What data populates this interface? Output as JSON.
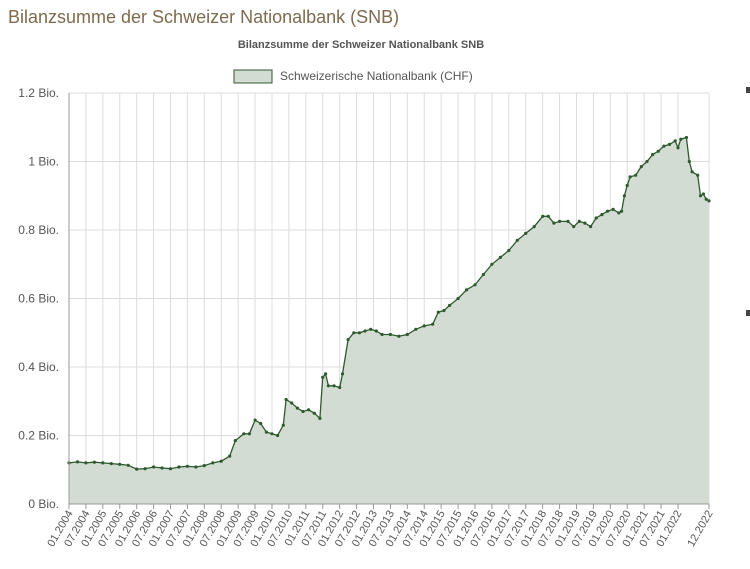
{
  "page": {
    "heading": "Bilanzsumme der Schweizer Nationalbank (SNB)"
  },
  "colors": {
    "line": "#2f5a2f",
    "fill": "#d3dcd3",
    "grid": "#dcdcdc",
    "axis": "#999999",
    "heading": "#7d6b4f"
  },
  "chart_data": {
    "type": "area",
    "title": "Bilanzsumme der Schweizer Nationalbank SNB",
    "legend": {
      "placement": "top-center",
      "entries": [
        "Schweizerische Nationalbank (CHF)"
      ]
    },
    "grid": true,
    "ylim": [
      0,
      1.2
    ],
    "yticks": [
      {
        "value": 0,
        "label": "0 Bio."
      },
      {
        "value": 0.2,
        "label": "0.2 Bio."
      },
      {
        "value": 0.4,
        "label": "0.4 Bio."
      },
      {
        "value": 0.6,
        "label": "0.6 Bio."
      },
      {
        "value": 0.8,
        "label": "0.8 Bio."
      },
      {
        "value": 1.0,
        "label": "1 Bio."
      },
      {
        "value": 1.2,
        "label": "1.2 Bio."
      }
    ],
    "xlim": [
      "01.2004",
      "12.2022"
    ],
    "xticks": [
      "01.2004",
      "07.2004",
      "01.2005",
      "07.2005",
      "01.2006",
      "07.2006",
      "01.2007",
      "07.2007",
      "01.2008",
      "07.2008",
      "01.2009",
      "07.2009",
      "01.2010",
      "07.2010",
      "01.2011",
      "07.2011",
      "01.2012",
      "07.2012",
      "01.2013",
      "07.2013",
      "01.2014",
      "07.2014",
      "01.2015",
      "07.2015",
      "01.2016",
      "07.2016",
      "01.2017",
      "07.2017",
      "01.2018",
      "07.2018",
      "01.2019",
      "07.2019",
      "01.2020",
      "07.2020",
      "01.2021",
      "07.2021",
      "01.2022",
      "12.2022"
    ],
    "series": [
      {
        "name": "Schweizerische Nationalbank (CHF)",
        "points": [
          [
            "01.2004",
            0.12
          ],
          [
            "04.2004",
            0.123
          ],
          [
            "07.2004",
            0.12
          ],
          [
            "10.2004",
            0.122
          ],
          [
            "01.2005",
            0.12
          ],
          [
            "04.2005",
            0.118
          ],
          [
            "07.2005",
            0.116
          ],
          [
            "10.2005",
            0.113
          ],
          [
            "01.2006",
            0.102
          ],
          [
            "04.2006",
            0.103
          ],
          [
            "07.2006",
            0.108
          ],
          [
            "10.2006",
            0.105
          ],
          [
            "01.2007",
            0.103
          ],
          [
            "04.2007",
            0.108
          ],
          [
            "07.2007",
            0.11
          ],
          [
            "10.2007",
            0.108
          ],
          [
            "01.2008",
            0.112
          ],
          [
            "04.2008",
            0.12
          ],
          [
            "07.2008",
            0.125
          ],
          [
            "10.2008",
            0.14
          ],
          [
            "12.2008",
            0.185
          ],
          [
            "03.2009",
            0.205
          ],
          [
            "05.2009",
            0.205
          ],
          [
            "07.2009",
            0.245
          ],
          [
            "09.2009",
            0.235
          ],
          [
            "11.2009",
            0.21
          ],
          [
            "01.2010",
            0.205
          ],
          [
            "03.2010",
            0.2
          ],
          [
            "05.2010",
            0.23
          ],
          [
            "06.2010",
            0.305
          ],
          [
            "08.2010",
            0.295
          ],
          [
            "10.2010",
            0.28
          ],
          [
            "12.2010",
            0.27
          ],
          [
            "02.2011",
            0.275
          ],
          [
            "04.2011",
            0.265
          ],
          [
            "06.2011",
            0.25
          ],
          [
            "07.2011",
            0.37
          ],
          [
            "08.2011",
            0.38
          ],
          [
            "09.2011",
            0.345
          ],
          [
            "11.2011",
            0.345
          ],
          [
            "01.2012",
            0.34
          ],
          [
            "02.2012",
            0.38
          ],
          [
            "04.2012",
            0.48
          ],
          [
            "06.2012",
            0.5
          ],
          [
            "08.2012",
            0.5
          ],
          [
            "10.2012",
            0.505
          ],
          [
            "12.2012",
            0.51
          ],
          [
            "02.2013",
            0.505
          ],
          [
            "04.2013",
            0.495
          ],
          [
            "07.2013",
            0.495
          ],
          [
            "10.2013",
            0.49
          ],
          [
            "01.2014",
            0.495
          ],
          [
            "04.2014",
            0.51
          ],
          [
            "07.2014",
            0.52
          ],
          [
            "10.2014",
            0.525
          ],
          [
            "12.2014",
            0.56
          ],
          [
            "02.2015",
            0.565
          ],
          [
            "04.2015",
            0.58
          ],
          [
            "07.2015",
            0.6
          ],
          [
            "10.2015",
            0.625
          ],
          [
            "01.2016",
            0.64
          ],
          [
            "04.2016",
            0.67
          ],
          [
            "07.2016",
            0.7
          ],
          [
            "10.2016",
            0.72
          ],
          [
            "01.2017",
            0.74
          ],
          [
            "04.2017",
            0.77
          ],
          [
            "07.2017",
            0.79
          ],
          [
            "10.2017",
            0.81
          ],
          [
            "01.2018",
            0.84
          ],
          [
            "03.2018",
            0.84
          ],
          [
            "05.2018",
            0.82
          ],
          [
            "07.2018",
            0.825
          ],
          [
            "10.2018",
            0.825
          ],
          [
            "12.2018",
            0.81
          ],
          [
            "02.2019",
            0.825
          ],
          [
            "04.2019",
            0.82
          ],
          [
            "06.2019",
            0.81
          ],
          [
            "08.2019",
            0.835
          ],
          [
            "10.2019",
            0.845
          ],
          [
            "12.2019",
            0.855
          ],
          [
            "02.2020",
            0.86
          ],
          [
            "04.2020",
            0.85
          ],
          [
            "05.2020",
            0.855
          ],
          [
            "06.2020",
            0.9
          ],
          [
            "07.2020",
            0.93
          ],
          [
            "08.2020",
            0.955
          ],
          [
            "10.2020",
            0.96
          ],
          [
            "12.2020",
            0.985
          ],
          [
            "02.2021",
            1.0
          ],
          [
            "04.2021",
            1.02
          ],
          [
            "06.2021",
            1.03
          ],
          [
            "08.2021",
            1.045
          ],
          [
            "10.2021",
            1.05
          ],
          [
            "12.2021",
            1.06
          ],
          [
            "01.2022",
            1.04
          ],
          [
            "02.2022",
            1.065
          ],
          [
            "04.2022",
            1.07
          ],
          [
            "05.2022",
            1.0
          ],
          [
            "06.2022",
            0.97
          ],
          [
            "08.2022",
            0.96
          ],
          [
            "09.2022",
            0.9
          ],
          [
            "10.2022",
            0.905
          ],
          [
            "11.2022",
            0.89
          ],
          [
            "12.2022",
            0.885
          ]
        ]
      }
    ]
  }
}
